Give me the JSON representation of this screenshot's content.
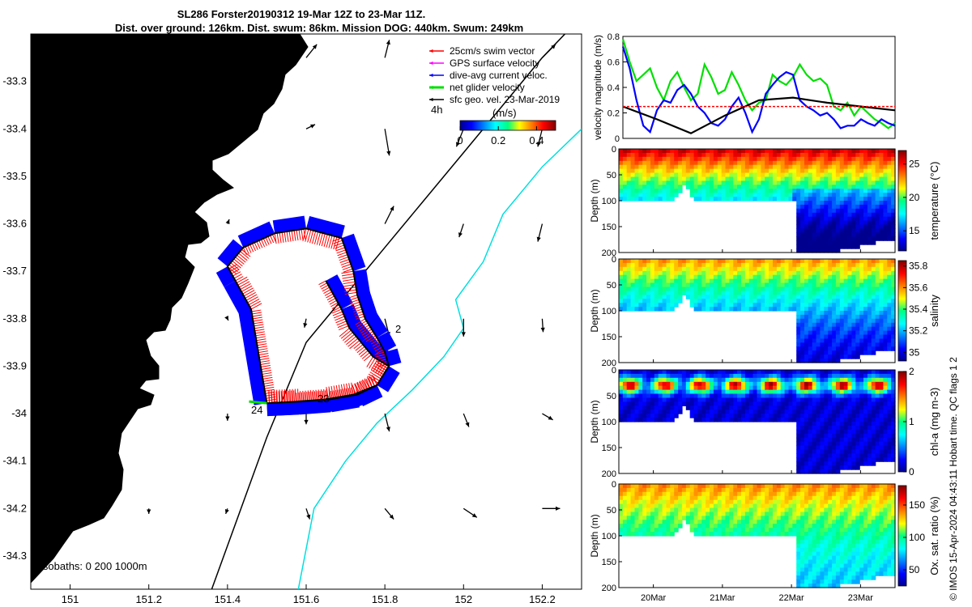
{
  "titles": {
    "line1": "SL286 Forster20190312 19-Mar 12Z to 23-Mar 11Z.",
    "line2": "Dist. over ground: 126km. Dist. swum: 86km. Mission DOG: 440km. Swum: 249km"
  },
  "credit": "© IMOS 15-Apr-2024 04:43:11 Hobart time. QC flags 1  2",
  "colors": {
    "land": "#f9cb9c",
    "swim": "#ff0000",
    "gps": "#ff00ff",
    "dive": "#0000ff",
    "net": "#00e000",
    "geo": "#000000",
    "isobath_200": "#000000",
    "isobath_1000": "#00e0e0"
  },
  "chart_data": [
    {
      "type": "scatter",
      "name": "track_map",
      "x_ticks": [
        "151",
        "151.2",
        "151.4",
        "151.6",
        "151.8",
        "152",
        "152.2"
      ],
      "y_ticks": [
        "-33.3",
        "-33.4",
        "-33.5",
        "-33.6",
        "-33.7",
        "-33.8",
        "-33.9",
        "-34",
        "-34.1",
        "-34.2",
        "-34.3"
      ],
      "xlim": [
        150.9,
        152.3
      ],
      "ylim": [
        -34.37,
        -33.2
      ],
      "legend": [
        "25cm/s swim vector",
        "GPS surface velocity",
        "dive-avg current veloc.",
        "net glider velocity",
        "sfc geo. vel. 23-Mar-2019"
      ],
      "legend_placement": "top-right",
      "colorbar": {
        "label": "(m/s)",
        "ticks": [
          "0",
          "0.2",
          "0.4"
        ],
        "range": [
          0,
          0.5
        ]
      },
      "annotations": [
        "4h",
        "isobaths: 0   200  1000m",
        "2",
        "23",
        "24"
      ],
      "glider_track": {
        "lon": [
          151.65,
          151.69,
          151.71,
          151.74,
          151.77,
          151.81,
          151.78,
          151.73,
          151.66,
          151.58,
          151.5,
          151.46,
          151.42,
          151.4,
          151.44,
          151.52,
          151.6,
          151.69,
          151.72,
          151.73,
          151.75,
          151.78,
          151.8,
          151.81,
          151.78,
          151.72,
          151.65,
          151.57,
          151.5
        ],
        "lat": [
          -33.72,
          -33.78,
          -33.82,
          -33.85,
          -33.88,
          -33.9,
          -33.94,
          -33.96,
          -33.97,
          -33.975,
          -33.978,
          -33.78,
          -33.72,
          -33.69,
          -33.65,
          -33.62,
          -33.61,
          -33.63,
          -33.7,
          -33.75,
          -33.8,
          -33.84,
          -33.87,
          -33.9,
          -33.94,
          -33.96,
          -33.97,
          -33.975,
          -33.978
        ]
      },
      "geo_vectors": [
        {
          "lon": 151.4,
          "lat": -33.4,
          "u": 0.05,
          "v": 0.03
        },
        {
          "lon": 151.6,
          "lat": -33.4,
          "u": 0.1,
          "v": 0.05
        },
        {
          "lon": 151.8,
          "lat": -33.4,
          "u": 0.05,
          "v": -0.3
        },
        {
          "lon": 152.0,
          "lat": -33.4,
          "u": -0.08,
          "v": -0.2
        },
        {
          "lon": 152.2,
          "lat": -33.4,
          "u": -0.05,
          "v": -0.2
        },
        {
          "lon": 151.4,
          "lat": -33.6,
          "u": 0.02,
          "v": 0.05
        },
        {
          "lon": 151.8,
          "lat": -33.6,
          "u": 0.1,
          "v": 0.2
        },
        {
          "lon": 152.0,
          "lat": -33.6,
          "u": -0.05,
          "v": -0.15
        },
        {
          "lon": 152.2,
          "lat": -33.6,
          "u": -0.05,
          "v": -0.2
        },
        {
          "lon": 151.4,
          "lat": -33.8,
          "u": 0.01,
          "v": -0.02
        },
        {
          "lon": 151.6,
          "lat": -33.8,
          "u": -0.02,
          "v": -0.1
        },
        {
          "lon": 152.0,
          "lat": -33.8,
          "u": 0.0,
          "v": -0.2
        },
        {
          "lon": 152.2,
          "lat": -33.8,
          "u": 0.01,
          "v": -0.15
        },
        {
          "lon": 151.8,
          "lat": -33.8,
          "u": 0.05,
          "v": -0.2
        },
        {
          "lon": 151.4,
          "lat": -34.0,
          "u": 0.0,
          "v": -0.08
        },
        {
          "lon": 151.6,
          "lat": -34.0,
          "u": 0.0,
          "v": -0.12
        },
        {
          "lon": 151.8,
          "lat": -34.0,
          "u": 0.05,
          "v": -0.2
        },
        {
          "lon": 152.0,
          "lat": -34.0,
          "u": 0.06,
          "v": -0.15
        },
        {
          "lon": 152.2,
          "lat": -34.0,
          "u": 0.12,
          "v": -0.07
        },
        {
          "lon": 151.0,
          "lat": -34.2,
          "u": 0.03,
          "v": -0.05
        },
        {
          "lon": 151.2,
          "lat": -34.2,
          "u": 0.0,
          "v": -0.06
        },
        {
          "lon": 151.4,
          "lat": -34.2,
          "u": -0.02,
          "v": -0.06
        },
        {
          "lon": 151.6,
          "lat": -34.2,
          "u": 0.04,
          "v": -0.12
        },
        {
          "lon": 151.8,
          "lat": -34.2,
          "u": 0.1,
          "v": -0.12
        },
        {
          "lon": 152.0,
          "lat": -34.2,
          "u": 0.15,
          "v": -0.1
        },
        {
          "lon": 152.2,
          "lat": -34.2,
          "u": 0.2,
          "v": 0.0
        },
        {
          "lon": 151.6,
          "lat": -33.25,
          "u": 0.12,
          "v": 0.15
        },
        {
          "lon": 151.8,
          "lat": -33.25,
          "u": 0.05,
          "v": 0.2
        },
        {
          "lon": 152.2,
          "lat": -33.25,
          "u": 0.15,
          "v": 0.15
        },
        {
          "lon": 151.2,
          "lat": -33.25,
          "u": 0.02,
          "v": 0.01
        }
      ],
      "isobath_200": {
        "lon": [
          151.36,
          151.5,
          151.6,
          151.7,
          151.8,
          152.0,
          152.2,
          152.35
        ],
        "lat": [
          -34.37,
          -34.05,
          -33.85,
          -33.75,
          -33.65,
          -33.45,
          -33.25,
          -33.12
        ]
      },
      "isobath_1000": {
        "lon": [
          151.58,
          151.62,
          151.7,
          151.78,
          151.87,
          151.95,
          152.0,
          151.98,
          152.05,
          152.1,
          152.2,
          152.3
        ],
        "lat": [
          -34.37,
          -34.2,
          -34.1,
          -34.02,
          -33.95,
          -33.88,
          -33.82,
          -33.76,
          -33.68,
          -33.58,
          -33.48,
          -33.4
        ]
      }
    },
    {
      "type": "line",
      "name": "velocity_magnitude",
      "ylabel": "velocity magnitude (m/s)",
      "ylim": [
        0,
        0.8
      ],
      "y_ticks": [
        "0",
        "0.2",
        "0.4",
        "0.6",
        "0.8"
      ],
      "xlim": [
        19.5,
        23.5
      ],
      "series": [
        {
          "color": "#00e000",
          "x": [
            19.5,
            19.6,
            19.7,
            19.8,
            19.9,
            20.0,
            20.1,
            20.2,
            20.3,
            20.4,
            20.5,
            20.6,
            20.7,
            20.8,
            20.9,
            21.0,
            21.1,
            21.2,
            21.3,
            21.4,
            21.5,
            21.6,
            21.7,
            21.8,
            21.9,
            22.0,
            22.1,
            22.2,
            22.3,
            22.4,
            22.5,
            22.6,
            22.7,
            22.8,
            22.9,
            23.0,
            23.1,
            23.2,
            23.3,
            23.4,
            23.5
          ],
          "y": [
            0.78,
            0.6,
            0.45,
            0.5,
            0.55,
            0.4,
            0.3,
            0.45,
            0.52,
            0.4,
            0.3,
            0.35,
            0.58,
            0.48,
            0.35,
            0.38,
            0.52,
            0.42,
            0.3,
            0.22,
            0.28,
            0.3,
            0.5,
            0.45,
            0.42,
            0.48,
            0.58,
            0.5,
            0.45,
            0.47,
            0.42,
            0.25,
            0.22,
            0.28,
            0.18,
            0.25,
            0.2,
            0.15,
            0.12,
            0.08,
            0.12
          ]
        },
        {
          "color": "#0000ff",
          "x": [
            19.5,
            19.6,
            19.7,
            19.8,
            19.9,
            20.0,
            20.1,
            20.2,
            20.3,
            20.4,
            20.5,
            20.6,
            20.7,
            20.8,
            20.9,
            21.0,
            21.1,
            21.2,
            21.3,
            21.4,
            21.5,
            21.6,
            21.7,
            21.8,
            21.9,
            22.0,
            22.1,
            22.2,
            22.3,
            22.4,
            22.5,
            22.6,
            22.7,
            22.8,
            22.9,
            23.0,
            23.1,
            23.2,
            23.3,
            23.4,
            23.5
          ],
          "y": [
            0.72,
            0.55,
            0.3,
            0.1,
            0.05,
            0.22,
            0.3,
            0.28,
            0.38,
            0.42,
            0.35,
            0.25,
            0.2,
            0.12,
            0.1,
            0.15,
            0.25,
            0.32,
            0.2,
            0.05,
            0.15,
            0.35,
            0.42,
            0.48,
            0.52,
            0.5,
            0.3,
            0.25,
            0.22,
            0.18,
            0.2,
            0.15,
            0.08,
            0.1,
            0.1,
            0.15,
            0.12,
            0.1,
            0.15,
            0.12,
            0.1
          ]
        },
        {
          "color": "#000000",
          "x": [
            19.5,
            20.0,
            20.5,
            21.0,
            21.5,
            22.0,
            22.5,
            23.0,
            23.5
          ],
          "y": [
            0.25,
            0.15,
            0.04,
            0.18,
            0.3,
            0.32,
            0.28,
            0.25,
            0.22
          ]
        },
        {
          "color": "#ff0000",
          "x": [
            19.5,
            23.5
          ],
          "y": [
            0.25,
            0.25
          ]
        }
      ]
    },
    {
      "type": "heatmap",
      "name": "temperature",
      "ylabel": "Depth (m)",
      "colorbar_label": "temperature (°C)",
      "colorbar_ticks": [
        "15",
        "20",
        "25"
      ],
      "crange": [
        12,
        27
      ],
      "ylim": [
        200,
        0
      ],
      "y_ticks": [
        "0",
        "50",
        "100",
        "150",
        "200"
      ],
      "x_ticks": [
        "20Mar",
        "21Mar",
        "22Mar",
        "23Mar"
      ],
      "surface_value": 26,
      "deep_value": 13
    },
    {
      "type": "heatmap",
      "name": "salinity",
      "ylabel": "Depth (m)",
      "colorbar_label": "salinity",
      "colorbar_ticks": [
        "35",
        "35.2",
        "35.4",
        "35.6",
        "35.8"
      ],
      "crange": [
        34.92,
        35.85
      ],
      "ylim": [
        200,
        0
      ],
      "y_ticks": [
        "0",
        "50",
        "100",
        "150",
        "200"
      ],
      "x_ticks": [
        "20Mar",
        "21Mar",
        "22Mar",
        "23Mar"
      ],
      "surface_value": 35.6,
      "deep_value": 35.0
    },
    {
      "type": "heatmap",
      "name": "chlorophyll",
      "ylabel": "Depth (m)",
      "colorbar_label": "chl-a (mg m-3)",
      "colorbar_ticks": [
        "0",
        "1",
        "2"
      ],
      "crange": [
        0,
        2
      ],
      "ylim": [
        200,
        0
      ],
      "y_ticks": [
        "0",
        "50",
        "100",
        "150",
        "200"
      ],
      "x_ticks": [
        "20Mar",
        "21Mar",
        "22Mar",
        "23Mar"
      ],
      "surface_value": 0.4,
      "deep_value": 0.05
    },
    {
      "type": "heatmap",
      "name": "oxygen",
      "ylabel": "Depth (m)",
      "colorbar_label": "Ox. sat. ratio (%)",
      "colorbar_ticks": [
        "50",
        "100",
        "150"
      ],
      "crange": [
        25,
        180
      ],
      "ylim": [
        200,
        0
      ],
      "y_ticks": [
        "0",
        "50",
        "100",
        "150",
        "200"
      ],
      "x_ticks": [
        "20Mar",
        "21Mar",
        "22Mar",
        "23Mar"
      ],
      "surface_value": 140,
      "deep_value": 75
    }
  ]
}
